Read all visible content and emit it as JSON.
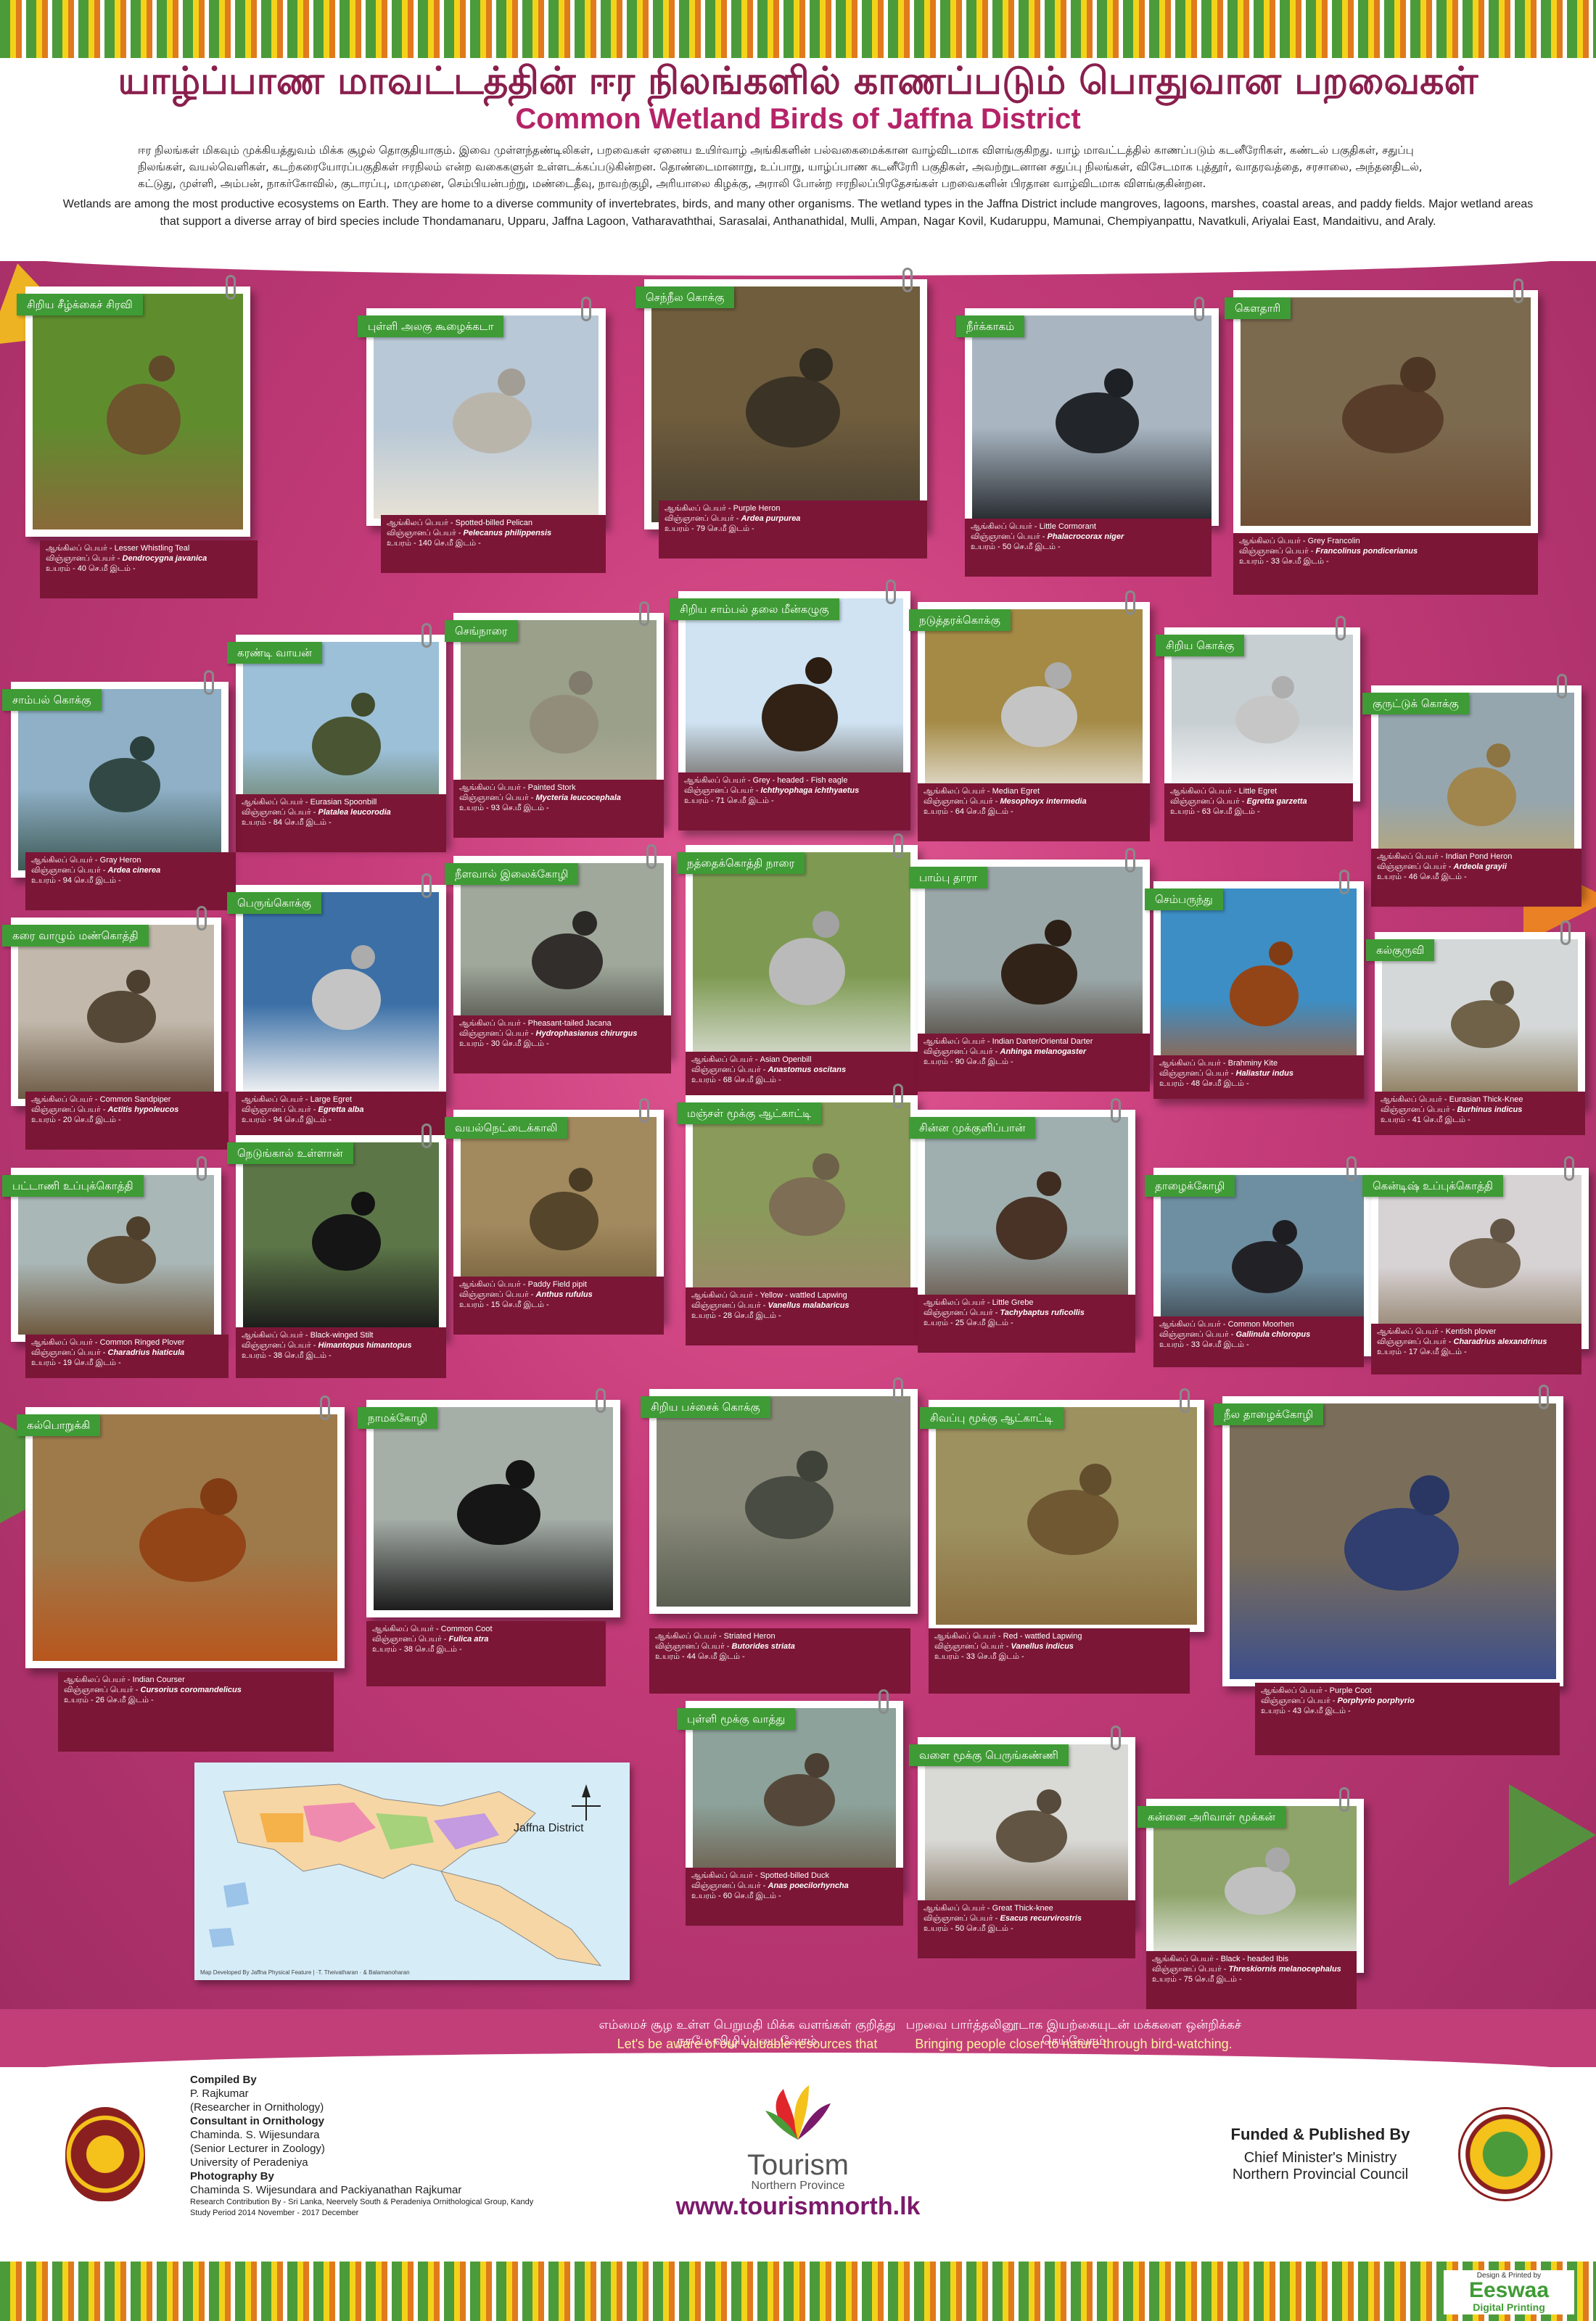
{
  "header": {
    "title_ta": "யாழ்ப்பாண மாவட்டத்தின் ஈர நிலங்களில் காணப்படும் பொதுவான பறவைகள்",
    "title_en": "Common Wetland Birds of Jaffna District",
    "intro_ta": "ஈர நிலங்கள் மிகவும் முக்கியத்துவம் மிக்க சூழல் தொகுதியாகும். இவை முள்ளந்தண்டிலிகள், பறவைகள் ஏனைய உயிர்வாழ் அங்கிகளின் பல்வகைமைக்கான வாழ்விடமாக விளங்குகிறது. யாழ் மாவட்டத்தில் காணப்படும் கடனீரேரிகள், கண்டல் பகுதிகள், சதுப்பு நிலங்கள், வயல்வெளிகள், கடற்கரையோரப்பகுதிகள் ஈரநிலம் என்ற வகைகளுள் உள்ளடக்கப்படுகின்றன. தொண்டைமானாறு, உப்பாறு, யாழ்ப்பாண கடனீரேரி பகுதிகள், அவற்றுடனான சதுப்பு நிலங்கள், விசேடமாக புத்தூர், வாதரவத்தை, சரசாலை, அந்தனதிடல், கட்டுது, முள்ளி, அம்பன், நாகர்கோவில், குடாரப்பு, மாமுனை, செம்பியன்பற்று, மண்டைதீவு, நாவற்குழி, அரியாலை கிழக்கு, அராலி போன்ற ஈரநிலப்பிரதேசங்கள் பறவைகளின் பிரதான வாழ்விடமாக விளங்குகின்றன.",
    "intro_en": "Wetlands are among the most productive ecosystems on Earth. They are home to a diverse community of invertebrates, birds, and many other organisms. The wetland types in the Jaffna District include mangroves, lagoons, marshes, coastal areas, and paddy fields. Major wetland areas that support a diverse array of bird species include Thondamanaru, Upparu, Jaffna Lagoon, Vatharavaththai, Sarasalai, Anthanathidal, Mulli, Ampan, Nagar Kovil, Kudaruppu, Mamunai, Chempiyanpattu, Navatkuli, Ariyalai East, Mandaitivu, and Araly."
  },
  "cards": [
    {
      "ta": "சிறிய சீழ்க்கைச் சிரவி",
      "en": "Lesser Whistling Teal",
      "sci": "Dendrocygna javanica",
      "size": "40 செ.மீ",
      "palette": [
        "#5f8d2e",
        "#8a6a3a"
      ]
    },
    {
      "ta": "புள்ளி அலகு கூழைக்கடா",
      "en": "Spotted-billed Pelican",
      "sci": "Pelecanus philippensis",
      "size": "140 செ.மீ",
      "palette": [
        "#b8c8d6",
        "#e8e2d6"
      ]
    },
    {
      "ta": "செந்நீல கொக்கு",
      "en": "Purple Heron",
      "sci": "Ardea purpurea",
      "size": "79 செ.மீ",
      "palette": [
        "#6f5d3d",
        "#4a4030"
      ]
    },
    {
      "ta": "நீர்க்காகம்",
      "en": "Little Cormorant",
      "sci": "Phalacrocorax niger",
      "size": "50 செ.மீ",
      "palette": [
        "#a9b6c2",
        "#2a2e33"
      ]
    },
    {
      "ta": "கௌதாரி",
      "en": "Grey Francolin",
      "sci": "Francolinus pondicerianus",
      "size": "33 செ.மீ",
      "palette": [
        "#7c6a4f",
        "#6e4e34"
      ]
    },
    {
      "ta": "கரண்டி வாயன்",
      "en": "Eurasian Spoonbill",
      "sci": "Platalea leucorodia",
      "size": "84 செ.மீ",
      "palette": [
        "#9cc0d8",
        "#5b6a40"
      ]
    },
    {
      "ta": "செங்நாரை",
      "en": "Painted Stork",
      "sci": "Mycteria leucocephala",
      "size": "93 செ.மீ",
      "palette": [
        "#9aa08a",
        "#b7b09a"
      ]
    },
    {
      "ta": "சிறிய சாம்பல் தலை மீன்கழுகு",
      "en": "Grey - headed - Fish eagle",
      "sci": "Ichthyophaga ichthyaetus",
      "size": "71 செ.மீ",
      "palette": [
        "#cfe3f2",
        "#3d2a1a"
      ]
    },
    {
      "ta": "நடுத்தரக்கொக்கு",
      "en": "Median Egret",
      "sci": "Mesophoyx intermedia",
      "size": "64 செ.மீ",
      "palette": [
        "#a48a45",
        "#f5f5f5"
      ]
    },
    {
      "ta": "சிறிய கொக்கு",
      "en": "Little Egret",
      "sci": "Egretta garzetta",
      "size": "63 செ.மீ",
      "palette": [
        "#c8cfd3",
        "#f8f8f8"
      ]
    },
    {
      "ta": "சாம்பல் கொக்கு",
      "en": "Gray Heron",
      "sci": "Ardea cinerea",
      "size": "94 செ.மீ",
      "palette": [
        "#8fb0c6",
        "#3d5a55"
      ]
    },
    {
      "ta": "குருட்டுக் கொக்கு",
      "en": "Indian Pond Heron",
      "sci": "Ardeola grayii",
      "size": "46 செ.மீ",
      "palette": [
        "#95a6ae",
        "#c8a660"
      ]
    },
    {
      "ta": "கரை வாழும் மண்கொத்தி",
      "en": "Common Sandpiper",
      "sci": "Actitis hypoleucos",
      "size": "20 செ.மீ",
      "palette": [
        "#c2b9ac",
        "#6c5a45"
      ]
    },
    {
      "ta": "பெருங்கொக்கு",
      "en": "Large Egret",
      "sci": "Egretta alba",
      "size": "94 செ.மீ",
      "palette": [
        "#3b6fa6",
        "#f5f5f5"
      ]
    },
    {
      "ta": "நீளவால் இலைக்கோழி",
      "en": "Pheasant-tailed Jacana",
      "sci": "Hydrophasianus chirurgus",
      "size": "30 செ.மீ",
      "palette": [
        "#9fa89b",
        "#3e3a36"
      ]
    },
    {
      "ta": "நத்தைக்கொத்தி நாரை",
      "en": "Asian Openbill",
      "sci": "Anastomus oscitans",
      "size": "68 செ.மீ",
      "palette": [
        "#7e9a52",
        "#e8e8e8"
      ]
    },
    {
      "ta": "பாம்பு தாரா",
      "en": "Indian Darter/Oriental Darter",
      "sci": "Anhinga melanogaster",
      "size": "90 செ.மீ",
      "palette": [
        "#9aa7a8",
        "#3e2c1f"
      ]
    },
    {
      "ta": "செம்பருந்து",
      "en": "Brahminy Kite",
      "sci": "Haliastur indus",
      "size": "48 செ.மீ",
      "palette": [
        "#3d8ec4",
        "#b8561d"
      ]
    },
    {
      "ta": "கல்குருவி",
      "en": "Eurasian Thick-Knee",
      "sci": "Burhinus indicus",
      "size": "41 செ.மீ",
      "palette": [
        "#d4d8d8",
        "#8b7a5a"
      ]
    },
    {
      "ta": "பட்டாணி உப்புக்கொத்தி",
      "en": "Common Ringed Plover",
      "sci": "Charadrius hiaticula",
      "size": "19 செ.மீ",
      "palette": [
        "#aab7b7",
        "#6f5a3f"
      ]
    },
    {
      "ta": "நெடுங்கால் உள்ளான்",
      "en": "Black-winged Stilt",
      "sci": "Himantopus himantopus",
      "size": "38 செ.மீ",
      "palette": [
        "#5c7648",
        "#1a1a1a"
      ]
    },
    {
      "ta": "வயல்நெட்டைக்காலி",
      "en": "Paddy Field pipit",
      "sci": "Anthus rufulus",
      "size": "15 செ.மீ",
      "palette": [
        "#a2895e",
        "#6a5634"
      ]
    },
    {
      "ta": "மஞ்சள் மூக்கு ஆட்காட்டி",
      "en": "Yellow - wattled Lapwing",
      "sci": "Vanellus malabaricus",
      "size": "28 செ.மீ",
      "palette": [
        "#8a9a5a",
        "#9c8a6a"
      ]
    },
    {
      "ta": "சின்ன முக்குளிப்பான்",
      "en": "Little Grebe",
      "sci": "Tachybaptus ruficollis",
      "size": "25 செ.மீ",
      "palette": [
        "#9fafb0",
        "#5a4030"
      ]
    },
    {
      "ta": "தாழைக்கோழி",
      "en": "Common Moorhen",
      "sci": "Gallinula chloropus",
      "size": "33 செ.மீ",
      "palette": [
        "#6e8fa1",
        "#2b2b30"
      ]
    },
    {
      "ta": "கென்டிஷ் உப்புக்கொத்தி",
      "en": "Kentish plover",
      "sci": "Charadrius alexandrinus",
      "size": "17 செ.மீ",
      "palette": [
        "#d7d2d4",
        "#8c7a62"
      ]
    },
    {
      "ta": "கல்பொறுக்கி",
      "en": "Indian Courser",
      "sci": "Cursorius coromandelicus",
      "size": "26 செ.மீ",
      "palette": [
        "#9e7a4b",
        "#b8561d"
      ]
    },
    {
      "ta": "நாமக்கோழி",
      "en": "Common Coot",
      "sci": "Fulica atra",
      "size": "38 செ.மீ",
      "palette": [
        "#a6aea8",
        "#1c1c1c"
      ]
    },
    {
      "ta": "சிறிய பச்சைக் கொக்கு",
      "en": "Striated Heron",
      "sci": "Butorides striata",
      "size": "44 செ.மீ",
      "palette": [
        "#8a8a7a",
        "#5a5f52"
      ]
    },
    {
      "ta": "சிவப்பு மூக்கு ஆட்காட்டி",
      "en": "Red - wattled Lapwing",
      "sci": "Vanellus indicus",
      "size": "33 செ.மீ",
      "palette": [
        "#9d9160",
        "#8c6e40"
      ]
    },
    {
      "ta": "நீல தாழைக்கோழி",
      "en": "Purple Coot",
      "sci": "Porphyrio porphyrio",
      "size": "43 செ.மீ",
      "palette": [
        "#7a6e5a",
        "#3c4e8c"
      ]
    },
    {
      "ta": "புள்ளி மூக்கு வாத்து",
      "en": "Spotted-billed Duck",
      "sci": "Anas poecilorhyncha",
      "size": "60 செ.மீ",
      "palette": [
        "#8ca29a",
        "#6a5a48"
      ]
    },
    {
      "ta": "வளை மூக்கு பெருங்கண்ணி",
      "en": "Great Thick-knee",
      "sci": "Esacus recurvirostris",
      "size": "50 செ.மீ",
      "palette": [
        "#d9d9d6",
        "#7a6a55"
      ]
    },
    {
      "ta": "கன்னை அரிவாள் மூக்கன்",
      "en": "Black - headed Ibis",
      "sci": "Threskiornis melanocephalus",
      "size": "75 செ.மீ",
      "palette": [
        "#8ea46a",
        "#f0f0f0"
      ]
    }
  ],
  "field_labels": {
    "en": "ஆங்கிலப் பெயர்",
    "sci": "விஞ்ஞானப் பெயர்",
    "size": "உயரம்",
    "place": "இடம்"
  },
  "map": {
    "title": "Jaffna District",
    "caption": "Map Developed By Jaffna Physical Feature | ·T. Theivatharan · & Balamanoharan"
  },
  "slogans": {
    "left_ta": "எம்மைச் சூழ உள்ள பெறுமதி மிக்க வளங்கள் குறித்து நாமே விழிப்படைவோம்",
    "left_en": "Let's be aware of our valuable resources that surround us.",
    "right_ta": "பறவை பார்த்தலினூடாக இயற்கையுடன் மக்களை ஒன்றிக்கச் செய்வோம்",
    "right_en": "Bringing people closer to nature through bird-watching."
  },
  "credits": {
    "compiled_h": "Compiled By",
    "compiled_name": "P. Rajkumar",
    "compiled_role": "(Researcher in Ornithology)",
    "consultant_h": "Consultant in Ornithology",
    "consultant_name": "Chaminda. S. Wijesundara",
    "consultant_role": "(Senior Lecturer in Zoology)",
    "consultant_uni": "University of Peradeniya",
    "photo_h": "Photography By",
    "photo_names": "Chaminda S. Wijesundara and Packiyanathan Rajkumar",
    "research": "Research Contribution By - Sri Lanka, Neervely South & Peradeniya Ornithological Group, Kandy",
    "study": "Study Period 2014 November - 2017 December"
  },
  "tourism": {
    "name": "Tourism",
    "sub": "Northern Province",
    "web": "www.tourismnorth.lk"
  },
  "funded": {
    "h": "Funded & Published By",
    "line1": "Chief Minister's Ministry",
    "line2": "Northern Provincial Council"
  },
  "printer": {
    "brand": "Eeswaa",
    "sub": "Digital Printing",
    "small": "Design & Printed by"
  }
}
